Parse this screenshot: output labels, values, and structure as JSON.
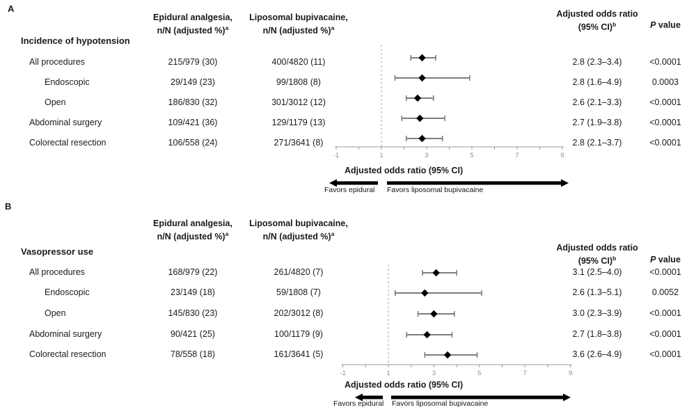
{
  "figure": {
    "panels": [
      {
        "label": "A",
        "section_title": "Incidence of hypotension",
        "col_headers": {
          "epidural_line1": "Epidural analgesia,",
          "epidural_line2": "n/N (adjusted %)",
          "epidural_sup": "a",
          "liposomal_line1": "Liposomal bupivacaine,",
          "liposomal_line2": "n/N (adjusted %)",
          "liposomal_sup": "a",
          "or_line1": "Adjusted odds ratio",
          "or_line2": "(95% CI)",
          "or_sup": "b",
          "p_italic": "P",
          "p_rest": " value"
        },
        "rows": [
          {
            "label": "All procedures",
            "indent": false,
            "epidural": "215/979 (30)",
            "liposomal": "400/4820 (11)",
            "or_text": "2.8 (2.3–3.4)",
            "p_value": "<0.0001"
          },
          {
            "label": "Endoscopic",
            "indent": true,
            "epidural": "29/149 (23)",
            "liposomal": "99/1808 (8)",
            "or_text": "2.8 (1.6–4.9)",
            "p_value": "0.0003"
          },
          {
            "label": "Open",
            "indent": true,
            "epidural": "186/830 (32)",
            "liposomal": "301/3012 (12)",
            "or_text": "2.6 (2.1–3.3)",
            "p_value": "<0.0001"
          },
          {
            "label": "Abdominal surgery",
            "indent": false,
            "epidural": "109/421 (36)",
            "liposomal": "129/1179 (13)",
            "or_text": "2.7 (1.9–3.8)",
            "p_value": "<0.0001"
          },
          {
            "label": "Colorectal resection",
            "indent": false,
            "epidural": "106/558 (24)",
            "liposomal": "271/3641 (8)",
            "or_text": "2.8 (2.1–3.7)",
            "p_value": "<0.0001"
          }
        ],
        "axis_label": "Adjusted odds ratio (95% CI)",
        "favors_left": "Favors epidural",
        "favors_right": "Favors liposomal bupivacaine"
      },
      {
        "label": "B",
        "section_title": "Vasopressor use",
        "col_headers": {
          "epidural_line1": "Epidural analgesia,",
          "epidural_line2": "n/N (adjusted %)",
          "epidural_sup": "a",
          "liposomal_line1": "Liposomal bupivacaine,",
          "liposomal_line2": "n/N (adjusted %)",
          "liposomal_sup": "a",
          "or_line1": "Adjusted odds ratio",
          "or_line2": "(95% CI)",
          "or_sup": "b",
          "p_italic": "P",
          "p_rest": " value"
        },
        "rows": [
          {
            "label": "All procedures",
            "indent": false,
            "epidural": "168/979 (22)",
            "liposomal": "261/4820 (7)",
            "or_text": "3.1 (2.5–4.0)",
            "p_value": "<0.0001"
          },
          {
            "label": "Endoscopic",
            "indent": true,
            "epidural": "23/149 (18)",
            "liposomal": "59/1808 (7)",
            "or_text": "2.6 (1.3–5.1)",
            "p_value": "0.0052"
          },
          {
            "label": "Open",
            "indent": true,
            "epidural": "145/830 (23)",
            "liposomal": "202/3012 (8)",
            "or_text": "3.0 (2.3–3.9)",
            "p_value": "<0.0001"
          },
          {
            "label": "Abdominal surgery",
            "indent": false,
            "epidural": "90/421 (25)",
            "liposomal": "100/1179 (9)",
            "or_text": "2.7 (1.8–3.8)",
            "p_value": "<0.0001"
          },
          {
            "label": "Colorectal resection",
            "indent": false,
            "epidural": "78/558 (18)",
            "liposomal": "161/3641 (5)",
            "or_text": "3.6 (2.6–4.9)",
            "p_value": "<0.0001"
          }
        ],
        "axis_label": "Adjusted odds ratio (95% CI)",
        "favors_left": "Favors epidural",
        "favors_right": "Favors liposomal bupivacaine"
      }
    ]
  },
  "chart_data": [
    {
      "type": "forest",
      "panel": "A",
      "title": "Incidence of hypotension",
      "xlabel": "Adjusted odds ratio (95% CI)",
      "xlim": [
        -1,
        9
      ],
      "x_ticks_labeled": [
        -1,
        1,
        3,
        5,
        7,
        9
      ],
      "x_tick_minor_step": 1,
      "reference_line_x": 1,
      "marker": "diamond",
      "direction_labels": {
        "left": "Favors epidural",
        "right": "Favors liposomal bupivacaine"
      },
      "points": [
        {
          "category": "All procedures",
          "or": 2.8,
          "ci": [
            2.3,
            3.4
          ],
          "p": "<0.0001"
        },
        {
          "category": "Endoscopic",
          "or": 2.8,
          "ci": [
            1.6,
            4.9
          ],
          "p": "0.0003"
        },
        {
          "category": "Open",
          "or": 2.6,
          "ci": [
            2.1,
            3.3
          ],
          "p": "<0.0001"
        },
        {
          "category": "Abdominal surgery",
          "or": 2.7,
          "ci": [
            1.9,
            3.8
          ],
          "p": "<0.0001"
        },
        {
          "category": "Colorectal resection",
          "or": 2.8,
          "ci": [
            2.1,
            3.7
          ],
          "p": "<0.0001"
        }
      ]
    },
    {
      "type": "forest",
      "panel": "B",
      "title": "Vasopressor use",
      "xlabel": "Adjusted odds ratio (95% CI)",
      "xlim": [
        -1,
        9
      ],
      "x_ticks_labeled": [
        -1,
        1,
        3,
        5,
        7,
        9
      ],
      "x_tick_minor_step": 1,
      "reference_line_x": 1,
      "marker": "diamond",
      "direction_labels": {
        "left": "Favors epidural",
        "right": "Favors liposomal bupivacaine"
      },
      "points": [
        {
          "category": "All procedures",
          "or": 3.1,
          "ci": [
            2.5,
            4.0
          ],
          "p": "<0.0001"
        },
        {
          "category": "Endoscopic",
          "or": 2.6,
          "ci": [
            1.3,
            5.1
          ],
          "p": "0.0052"
        },
        {
          "category": "Open",
          "or": 3.0,
          "ci": [
            2.3,
            3.9
          ],
          "p": "<0.0001"
        },
        {
          "category": "Abdominal surgery",
          "or": 2.7,
          "ci": [
            1.8,
            3.8
          ],
          "p": "<0.0001"
        },
        {
          "category": "Colorectal resection",
          "or": 3.6,
          "ci": [
            2.6,
            4.9
          ],
          "p": "<0.0001"
        }
      ]
    }
  ]
}
